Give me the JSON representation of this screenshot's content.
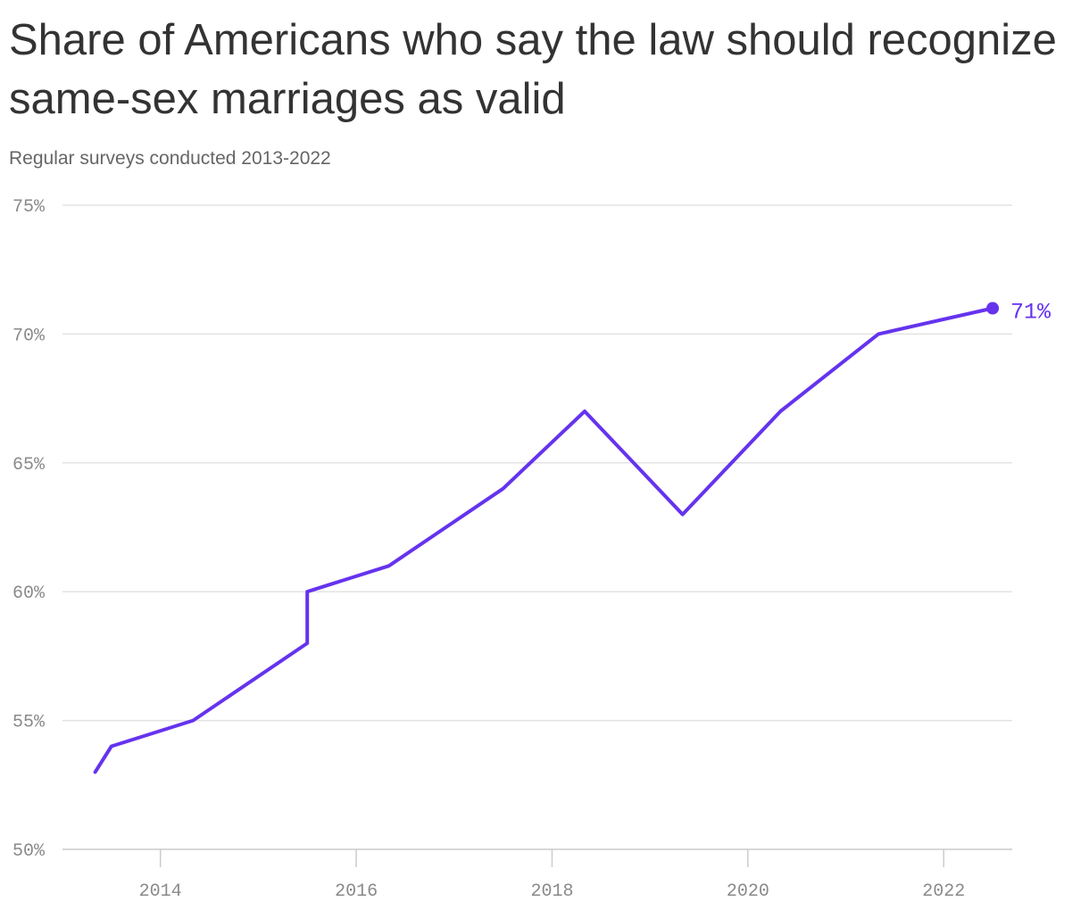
{
  "chart_data": {
    "type": "line",
    "title": "Share of Americans who say the law should recognize same-sex marriages as valid",
    "subtitle": "Regular surveys conducted 2013-2022",
    "xlabel": "",
    "ylabel": "",
    "x_ticks": [
      "2014",
      "2016",
      "2018",
      "2020",
      "2022"
    ],
    "y_ticks": [
      "50%",
      "55%",
      "60%",
      "65%",
      "70%",
      "75%"
    ],
    "xlim": [
      2013.0,
      2022.7
    ],
    "ylim": [
      50,
      75
    ],
    "grid": true,
    "series": [
      {
        "color": "#6533ee",
        "points": [
          {
            "x": "2013-05",
            "y": 53
          },
          {
            "x": "2013-07",
            "y": 54
          },
          {
            "x": "2014-05",
            "y": 55
          },
          {
            "x": "2015-07",
            "y": 58
          },
          {
            "x": "2015-07",
            "y": 60
          },
          {
            "x": "2016-05",
            "y": 61
          },
          {
            "x": "2017-07",
            "y": 64
          },
          {
            "x": "2018-05",
            "y": 67
          },
          {
            "x": "2019-05",
            "y": 63
          },
          {
            "x": "2020-05",
            "y": 67
          },
          {
            "x": "2021-05",
            "y": 70
          },
          {
            "x": "2022-07",
            "y": 71
          }
        ]
      }
    ],
    "end_label": "71%"
  },
  "colors": {
    "line": "#6533ee",
    "grid": "#e3e3e3",
    "axis": "#cccccc",
    "tick_text": "#8a8a8a"
  }
}
